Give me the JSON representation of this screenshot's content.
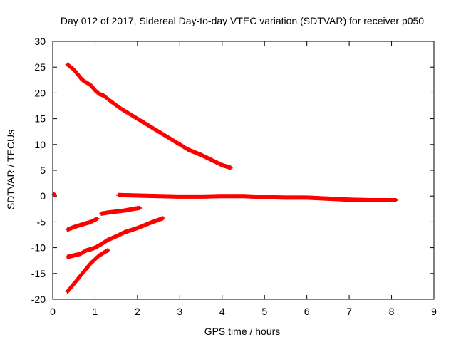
{
  "chart_data": {
    "type": "scatter",
    "title": "Day 012 of 2017, Sidereal Day-to-day VTEC variation (SDTVAR) for receiver p050",
    "xlabel": "GPS time / hours",
    "ylabel": "SDTVAR / TECUs",
    "xlim": [
      0,
      9
    ],
    "ylim": [
      -20,
      30
    ],
    "xticks": [
      "0",
      "1",
      "2",
      "3",
      "4",
      "5",
      "6",
      "7",
      "8",
      "9"
    ],
    "yticks": [
      "-20",
      "-15",
      "-10",
      "-5",
      "0",
      "5",
      "10",
      "15",
      "20",
      "25",
      "30"
    ],
    "grid": false,
    "legend": "none",
    "marker": "plus",
    "color": "#ff0000",
    "series": [
      {
        "x": [
          0.03,
          0.05
        ],
        "y": [
          0.3,
          0.2
        ]
      },
      {
        "x": [
          0.35,
          0.5,
          0.6,
          0.7,
          0.8,
          0.9,
          1.0,
          1.1,
          1.2,
          1.4,
          1.6,
          1.8,
          2.0,
          2.3,
          2.6,
          2.9,
          3.2,
          3.5,
          3.8,
          4.0,
          4.2
        ],
        "y": [
          25.5,
          24.5,
          23.5,
          22.5,
          22.0,
          21.5,
          20.5,
          19.8,
          19.5,
          18.2,
          17.0,
          16.0,
          15.0,
          13.5,
          12.0,
          10.5,
          9.0,
          8.0,
          6.8,
          6.0,
          5.5
        ]
      },
      {
        "x": [
          1.55,
          2.0,
          2.5,
          3.0,
          3.5,
          4.0,
          4.5,
          5.0,
          5.5,
          6.0,
          6.5,
          7.0,
          7.5,
          8.1
        ],
        "y": [
          0.2,
          0.1,
          0.0,
          -0.1,
          -0.1,
          0.0,
          0.0,
          -0.2,
          -0.3,
          -0.3,
          -0.5,
          -0.7,
          -0.8,
          -0.8
        ]
      },
      {
        "x": [
          0.35,
          0.5,
          0.7,
          0.9,
          1.05
        ],
        "y": [
          -6.5,
          -6.0,
          -5.5,
          -5.0,
          -4.4
        ]
      },
      {
        "x": [
          1.15,
          1.3,
          1.5,
          1.7,
          1.9,
          2.05
        ],
        "y": [
          -3.4,
          -3.2,
          -3.0,
          -2.8,
          -2.5,
          -2.3
        ]
      },
      {
        "x": [
          0.35,
          0.5,
          0.65,
          0.8,
          0.9,
          1.0,
          1.15,
          1.3,
          1.5,
          1.7,
          2.0,
          2.3,
          2.6
        ],
        "y": [
          -11.8,
          -11.5,
          -11.2,
          -10.5,
          -10.3,
          -10.0,
          -9.3,
          -8.5,
          -7.8,
          -7.0,
          -6.2,
          -5.2,
          -4.3
        ]
      },
      {
        "x": [
          0.35,
          0.5,
          0.7,
          0.9,
          1.1,
          1.3
        ],
        "y": [
          -18.5,
          -17.0,
          -15.0,
          -13.0,
          -11.5,
          -10.5
        ]
      }
    ]
  }
}
